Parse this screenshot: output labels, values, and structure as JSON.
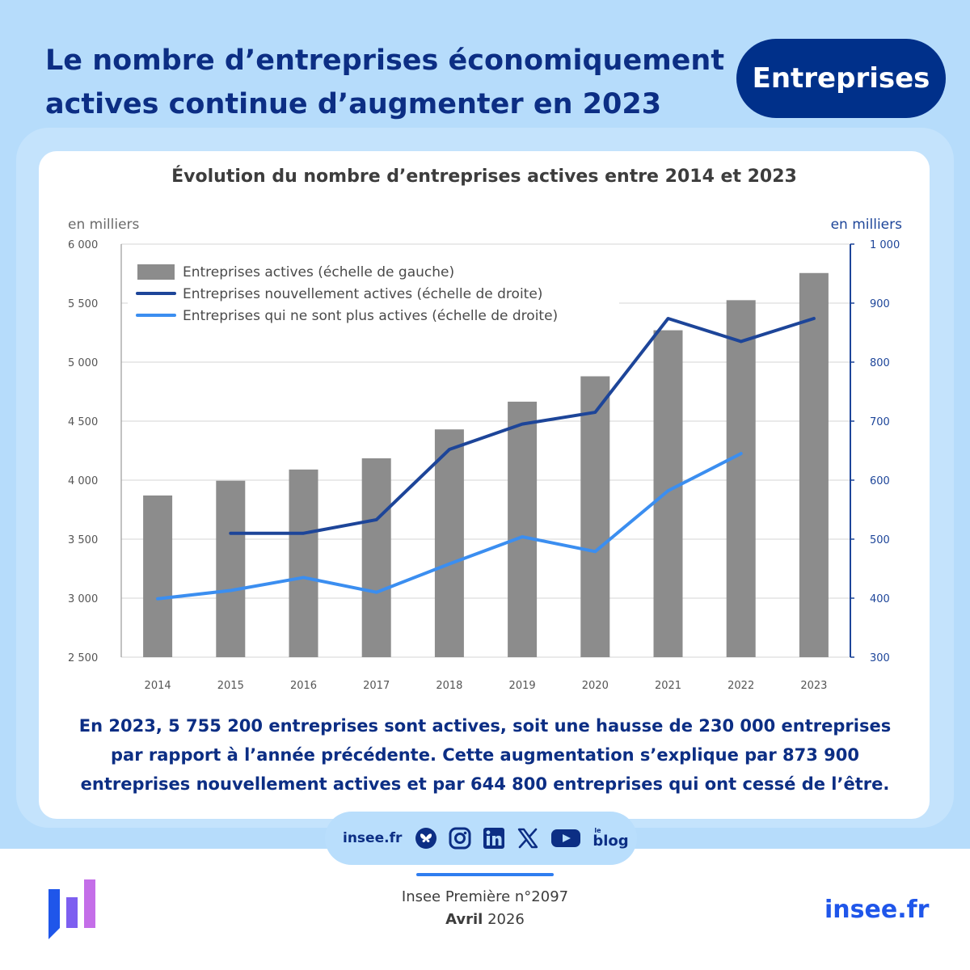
{
  "header": {
    "title_line1": "Le nombre d’entreprises économiquement",
    "title_line2": "actives continue d’augmenter en 2023",
    "tag": "Entreprises"
  },
  "chart_data": {
    "type": "bar",
    "title": "Évolution du nombre d’entreprises actives entre 2014 et 2023",
    "categories": [
      "2014",
      "2015",
      "2016",
      "2017",
      "2018",
      "2019",
      "2020",
      "2021",
      "2022",
      "2023"
    ],
    "y_left": {
      "label": "en milliers",
      "range": [
        2500,
        6000
      ],
      "ticks": [
        "2 500",
        "3 000",
        "3 500",
        "4 000",
        "4 500",
        "5 000",
        "5 500",
        "6 000"
      ]
    },
    "y_right": {
      "label": "en milliers",
      "range": [
        300,
        1000
      ],
      "ticks": [
        "300",
        "400",
        "500",
        "600",
        "700",
        "800",
        "900",
        "1 000"
      ]
    },
    "series": [
      {
        "name": "Entreprises actives (échelle de gauche)",
        "kind": "bar",
        "axis": "left",
        "color": "#8c8c8c",
        "values": [
          3870,
          3995,
          4090,
          4185,
          4430,
          4665,
          4880,
          5270,
          5525,
          5755
        ]
      },
      {
        "name": "Entreprises nouvellement actives (échelle de droite)",
        "kind": "line",
        "axis": "right",
        "color": "#1d4599",
        "values": [
          null,
          510,
          510,
          533,
          652,
          695,
          715,
          874,
          835,
          874
        ]
      },
      {
        "name": "Entreprises qui ne sont plus actives (échelle de droite)",
        "kind": "line",
        "axis": "right",
        "color": "#3b8ef0",
        "values": [
          399,
          413,
          435,
          410,
          458,
          504,
          479,
          582,
          645,
          null
        ]
      }
    ],
    "grid": true,
    "legend_position": "top-left"
  },
  "summary": {
    "line1": "En 2023, 5 755 200 entreprises sont actives, soit une hausse de 230 000 entreprises",
    "line2": "par rapport à l’année précédente. Cette augmentation s’explique par 873 900",
    "line3": "entreprises nouvellement actives et par 644 800 entreprises qui ont cessé de l’être."
  },
  "social": {
    "site": "insee.fr",
    "icons": [
      "bluesky-icon",
      "instagram-icon",
      "linkedin-icon",
      "x-icon",
      "youtube-icon",
      "blog-icon"
    ],
    "blog_le": "le",
    "blog_word": "blog"
  },
  "footer": {
    "publication": "Insee Première n°2097",
    "month": "Avril",
    "year": "2026",
    "site": "insee.fr"
  },
  "colors": {
    "navy": "#0c2e84",
    "band": "#b6dcfb",
    "accent": "#1f56ea"
  }
}
